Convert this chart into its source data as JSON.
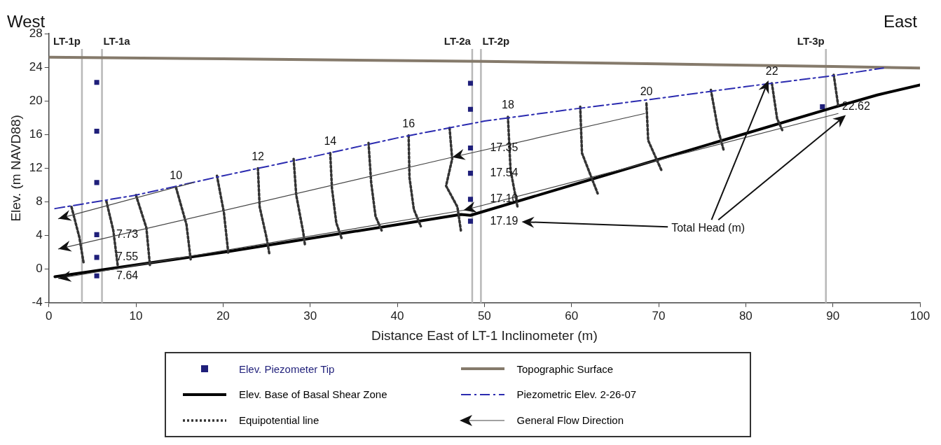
{
  "chart_data": {
    "type": "line",
    "xlabel": "Distance East of LT-1 Inclinometer (m)",
    "ylabel": "Elev. (m NAVD88)",
    "xlim": [
      0,
      100
    ],
    "xticks": [
      0,
      10,
      20,
      30,
      40,
      50,
      60,
      70,
      80,
      90,
      100
    ],
    "ylim": [
      -4,
      28
    ],
    "yticks": [
      -4,
      0,
      4,
      8,
      12,
      16,
      20,
      24,
      28
    ],
    "grid": false,
    "legend": "bottom",
    "series": [
      {
        "name": "Elev. Piezometer Tip",
        "type": "scatter",
        "marker": "square",
        "color": "#1f1f7a",
        "x": [
          5.5,
          5.5,
          5.5,
          5.5,
          5.5,
          5.5,
          48.4,
          48.4,
          48.4,
          48.4,
          48.4,
          48.4,
          88.8
        ],
        "values": [
          22.2,
          16.4,
          10.3,
          4.1,
          1.4,
          -0.8,
          22.1,
          19.0,
          14.4,
          11.4,
          8.3,
          5.7,
          19.3
        ]
      },
      {
        "name": "Elev. Base of Basal Shear Zone",
        "type": "line",
        "line_style": "solid",
        "color": "#000000",
        "x": [
          0.7,
          20.6,
          47.3,
          48.4,
          77.3,
          90,
          95.1,
          100
        ],
        "values": [
          -0.9,
          2.1,
          6.5,
          6.4,
          15.3,
          19.2,
          20.7,
          21.9
        ]
      },
      {
        "name": "Equipotential line",
        "type": "line",
        "line_style": "dotted",
        "color": "#333333",
        "x": [
          2.6,
          3.5,
          4.0,
          null,
          6.6,
          7.4,
          7.9,
          null,
          10.0,
          11.2,
          11.6,
          null,
          14.6,
          15.8,
          16.3,
          null,
          19.3,
          20.1,
          20.6,
          null,
          24.0,
          24.2,
          25.0,
          25.3,
          null,
          28.1,
          28.4,
          29.2,
          29.4,
          null,
          32.3,
          32.5,
          33.0,
          33.6,
          null,
          36.7,
          37.0,
          37.5,
          38.2,
          null,
          41.3,
          41.4,
          41.9,
          42.7,
          null,
          46.0,
          46.3,
          45.6,
          46.9,
          47.3,
          null,
          52.7,
          53.0,
          53.8,
          null,
          61.0,
          61.2,
          63.0,
          null,
          68.6,
          68.8,
          70.3,
          null,
          76.0,
          76.8,
          77.5,
          null,
          83.0,
          83.6,
          84.2,
          null,
          90.1,
          90.6
        ],
        "values": [
          7.4,
          3.8,
          0.7,
          null,
          8.1,
          4.6,
          0.5,
          null,
          8.8,
          4.9,
          0.5,
          null,
          9.7,
          5.3,
          1.0,
          null,
          11.1,
          6.7,
          1.9,
          null,
          12.0,
          7.4,
          3.7,
          1.9,
          null,
          13.1,
          8.8,
          4.4,
          2.9,
          null,
          13.8,
          9.6,
          5.5,
          3.7,
          null,
          15.0,
          10.3,
          6.3,
          4.6,
          null,
          15.9,
          10.9,
          7.1,
          5.1,
          null,
          16.8,
          13.1,
          9.9,
          7.4,
          4.6,
          null,
          18.1,
          11.8,
          7.4,
          null,
          19.3,
          13.8,
          9.0,
          null,
          19.7,
          15.3,
          11.8,
          null,
          21.3,
          16.7,
          14.0,
          null,
          22.1,
          17.9,
          16.5,
          null,
          23.1,
          19.5
        ]
      },
      {
        "name": "Topographic Surface",
        "type": "line",
        "line_style": "solid",
        "color": "#857a6b",
        "x": [
          0,
          20,
          50,
          70,
          90,
          100
        ],
        "values": [
          25.2,
          25.0,
          24.7,
          24.4,
          24.1,
          23.9
        ]
      },
      {
        "name": "Piezometric Elev. 2-26-07",
        "type": "line",
        "line_style": "dashed",
        "color": "#2b2bb0",
        "x": [
          0.7,
          10,
          20,
          30,
          40,
          50,
          60,
          70,
          80,
          90,
          95.8
        ],
        "values": [
          7.2,
          8.8,
          11.1,
          13.3,
          15.6,
          17.6,
          19.0,
          20.3,
          21.7,
          23.0,
          23.9
        ]
      },
      {
        "name": "General Flow Direction",
        "type": "line",
        "line_style": "solid",
        "color": "#444444",
        "x": [
          16.6,
          1.1,
          null,
          68.4,
          46.3,
          null,
          46.3,
          1.1,
          null,
          90.6,
          47.6,
          null,
          47.6,
          1.1
        ],
        "values": [
          10.3,
          6.0,
          null,
          18.5,
          13.3,
          null,
          13.3,
          2.4,
          null,
          18.5,
          7.0,
          null,
          7.0,
          -1.1
        ]
      }
    ],
    "ref_lines": [
      {
        "axis": "x",
        "value": 3.8,
        "label": "LT-1p",
        "color": "#b8b8b8"
      },
      {
        "axis": "x",
        "value": 6.1,
        "label": "LT-1a",
        "color": "#b8b8b8"
      },
      {
        "axis": "x",
        "value": 48.6,
        "label": "LT-2a",
        "color": "#b8b8b8"
      },
      {
        "axis": "x",
        "value": 49.6,
        "label": "LT-2p",
        "color": "#b8b8b8"
      },
      {
        "axis": "x",
        "value": 89.2,
        "label": "LT-3p",
        "color": "#b8b8b8"
      }
    ],
    "annotations": [
      "West",
      "East",
      "Total Head (m)",
      {
        "text": "10",
        "x": 14.6,
        "y": 9.7
      },
      {
        "text": "12",
        "x": 24.0,
        "y": 12.0
      },
      {
        "text": "14",
        "x": 32.3,
        "y": 13.8
      },
      {
        "text": "16",
        "x": 41.3,
        "y": 15.9
      },
      {
        "text": "18",
        "x": 52.7,
        "y": 18.1
      },
      {
        "text": "20",
        "x": 68.6,
        "y": 19.7
      },
      {
        "text": "22",
        "x": 83.0,
        "y": 22.1
      },
      {
        "text": "7.73",
        "x": 5.5,
        "y": 4.1
      },
      {
        "text": "7.55",
        "x": 5.5,
        "y": 1.4
      },
      {
        "text": "7.64",
        "x": 5.5,
        "y": -0.8
      },
      {
        "text": "17.35",
        "x": 48.4,
        "y": 14.4
      },
      {
        "text": "17.54",
        "x": 48.4,
        "y": 11.4
      },
      {
        "text": "17.10",
        "x": 48.4,
        "y": 8.3
      },
      {
        "text": "17.19",
        "x": 48.4,
        "y": 5.7
      },
      {
        "text": "22.62",
        "x": 88.8,
        "y": 19.3
      }
    ]
  }
}
